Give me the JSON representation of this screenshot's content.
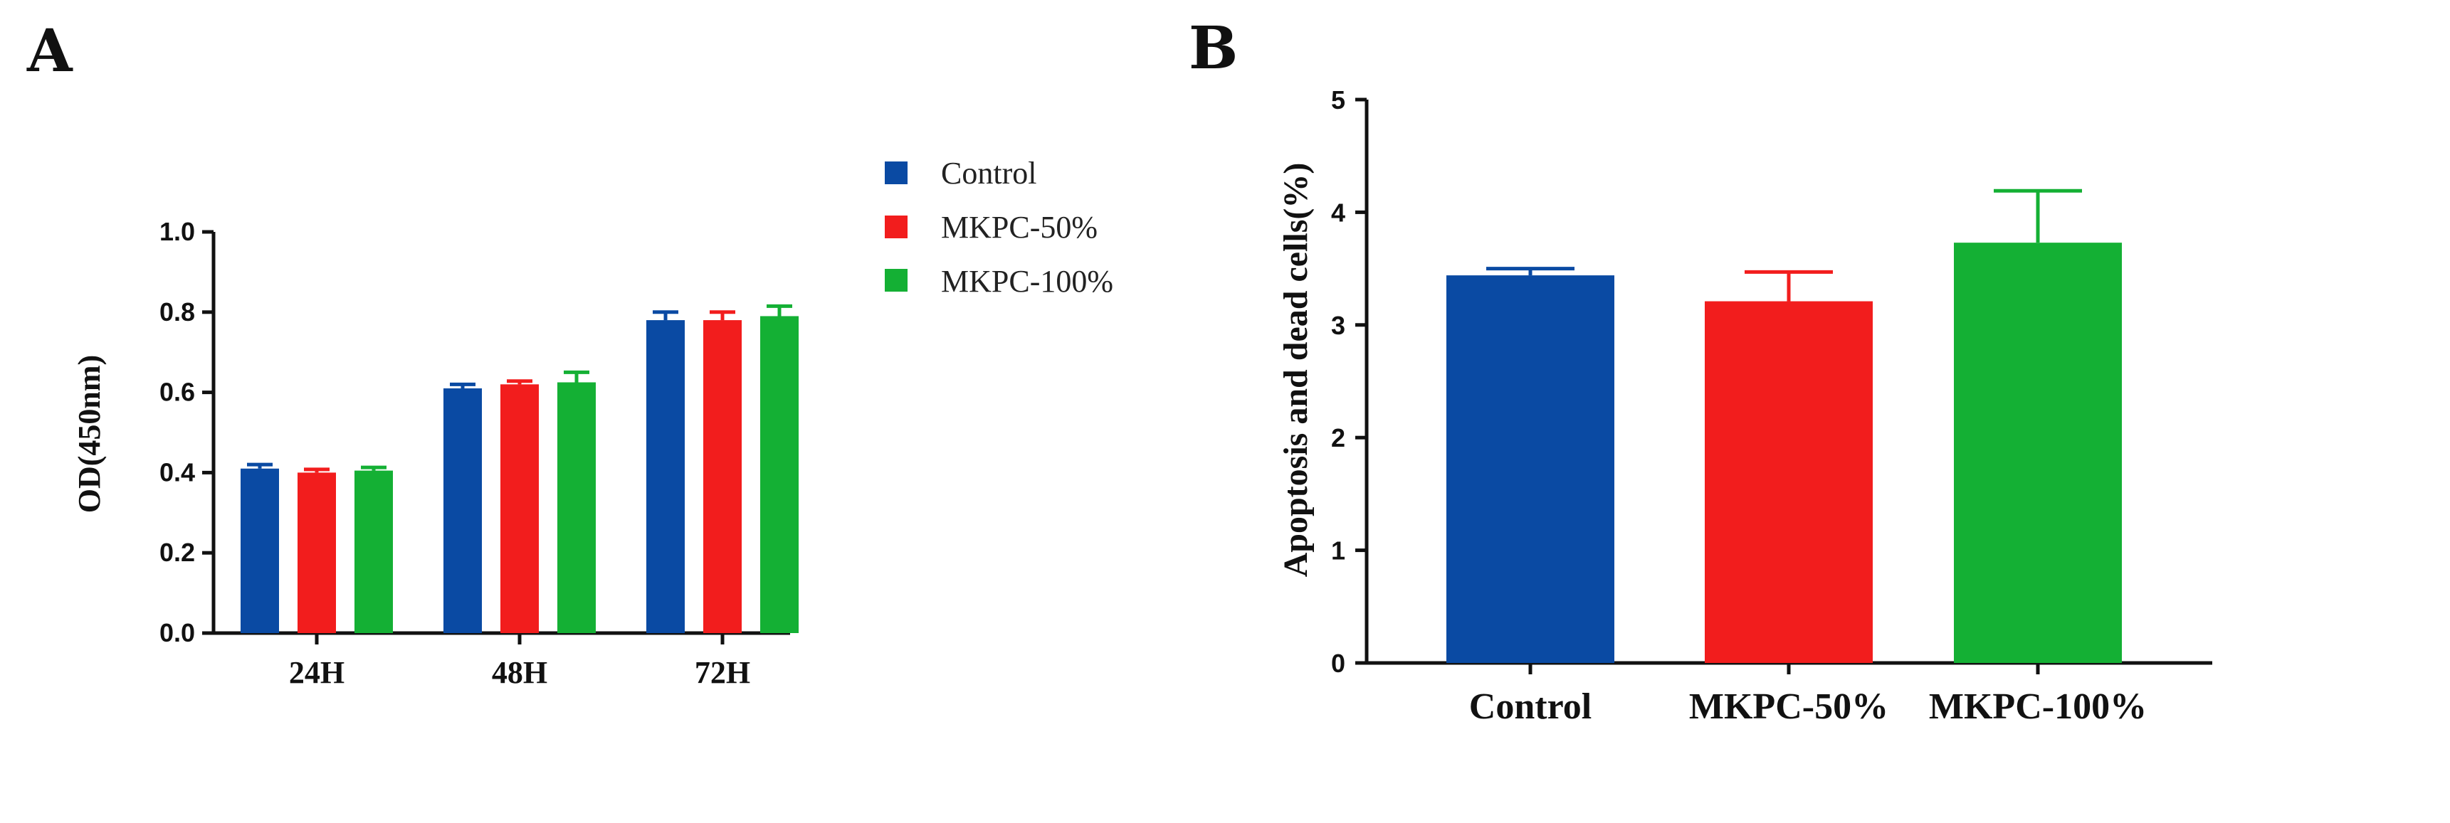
{
  "panels": {
    "a_letter": "A",
    "b_letter": "B"
  },
  "legend": {
    "entries": [
      {
        "label": "Control",
        "color": "#0a4aa3"
      },
      {
        "label": "MKPC-50%",
        "color": "#f21d1d"
      },
      {
        "label": "MKPC-100%",
        "color": "#14b034"
      }
    ]
  },
  "chart_data": [
    {
      "type": "bar",
      "panel": "A",
      "title": "",
      "xlabel": "",
      "ylabel": "OD(450nm)",
      "ylim": [
        0,
        1.0
      ],
      "yticks": [
        "0.0",
        "0.2",
        "0.4",
        "0.6",
        "0.8",
        "1.0"
      ],
      "categories": [
        "24H",
        "48H",
        "72H"
      ],
      "series": [
        {
          "name": "Control",
          "color": "#0a4aa3",
          "values": [
            0.41,
            0.61,
            0.78
          ],
          "errors": [
            0.01,
            0.01,
            0.02
          ]
        },
        {
          "name": "MKPC-50%",
          "color": "#f21d1d",
          "values": [
            0.4,
            0.62,
            0.78
          ],
          "errors": [
            0.008,
            0.008,
            0.02
          ]
        },
        {
          "name": "MKPC-100%",
          "color": "#14b034",
          "values": [
            0.405,
            0.625,
            0.79
          ],
          "errors": [
            0.008,
            0.025,
            0.025
          ]
        }
      ]
    },
    {
      "type": "bar",
      "panel": "B",
      "title": "",
      "xlabel": "",
      "ylabel": "Apoptosis and dead cells(%)",
      "ylim": [
        0,
        5
      ],
      "yticks": [
        "0",
        "1",
        "2",
        "3",
        "4",
        "5"
      ],
      "categories": [
        "Control",
        "MKPC-50%",
        "MKPC-100%"
      ],
      "values": [
        3.44,
        3.21,
        3.73
      ],
      "errors": [
        0.06,
        0.26,
        0.46
      ],
      "colors": [
        "#0a4aa3",
        "#f21d1d",
        "#14b034"
      ]
    }
  ]
}
